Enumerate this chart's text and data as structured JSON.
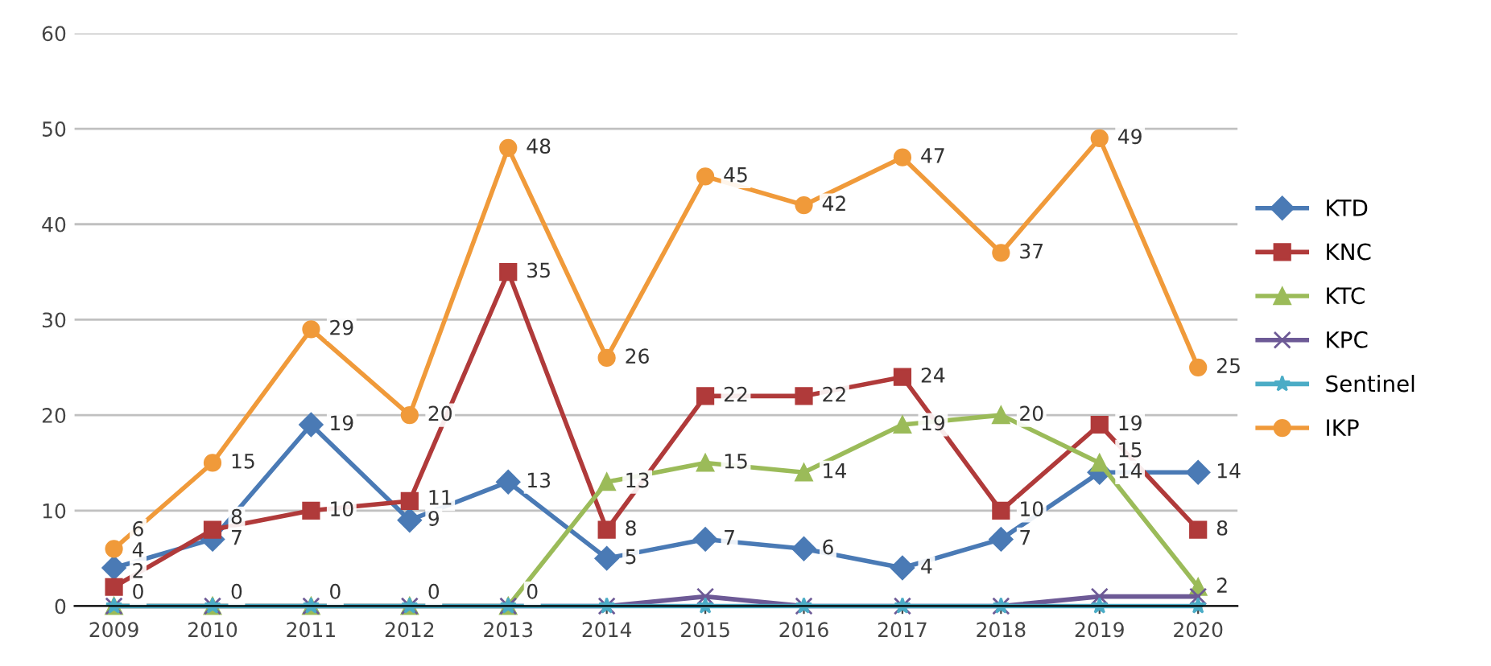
{
  "chart_data": {
    "type": "line",
    "categories": [
      "2009",
      "2010",
      "2011",
      "2012",
      "2013",
      "2014",
      "2015",
      "2016",
      "2017",
      "2018",
      "2019",
      "2020"
    ],
    "ylim": [
      0,
      60
    ],
    "yticks": [
      0,
      10,
      20,
      30,
      40,
      50,
      60
    ],
    "grid": "y",
    "legend": "right",
    "series": [
      {
        "name": "KTD",
        "color": "#4a7ab5",
        "marker": "diamond",
        "values": [
          4,
          7,
          19,
          9,
          13,
          5,
          7,
          6,
          4,
          7,
          14,
          14
        ],
        "value_labels": [
          "4",
          "7",
          "19",
          "9",
          "13",
          "5",
          "7",
          "6",
          "4",
          "7",
          "14",
          "14"
        ]
      },
      {
        "name": "KNC",
        "color": "#b03a3a",
        "marker": "square",
        "values": [
          2,
          8,
          10,
          11,
          35,
          8,
          22,
          22,
          24,
          10,
          19,
          8
        ],
        "value_labels": [
          "2",
          "8",
          "10",
          "11",
          "35",
          "8",
          "22",
          "22",
          "24",
          "10",
          "19",
          "8"
        ]
      },
      {
        "name": "KTC",
        "color": "#9bbb59",
        "marker": "triangle",
        "values": [
          0,
          0,
          0,
          0,
          0,
          13,
          15,
          14,
          19,
          20,
          15,
          2
        ],
        "value_labels": [
          "0",
          "0",
          "0",
          "0",
          "0",
          "13",
          "15",
          "14",
          "19",
          "20",
          "15",
          "2"
        ]
      },
      {
        "name": "KPC",
        "color": "#6d5a96",
        "marker": "cross",
        "values": [
          0,
          0,
          0,
          0,
          0,
          0,
          1,
          0,
          0,
          0,
          1,
          1
        ]
      },
      {
        "name": "Sentinel",
        "color": "#4bacc6",
        "marker": "star",
        "values": [
          0,
          0,
          0,
          0,
          0,
          0,
          0,
          0,
          0,
          0,
          0,
          0
        ]
      },
      {
        "name": "IKP",
        "color": "#f09a3a",
        "marker": "circle",
        "values": [
          6,
          15,
          29,
          20,
          48,
          26,
          45,
          42,
          47,
          37,
          49,
          25
        ],
        "value_labels": [
          "6",
          "15",
          "29",
          "20",
          "48",
          "26",
          "45",
          "42",
          "47",
          "37",
          "49",
          "25"
        ]
      }
    ]
  }
}
